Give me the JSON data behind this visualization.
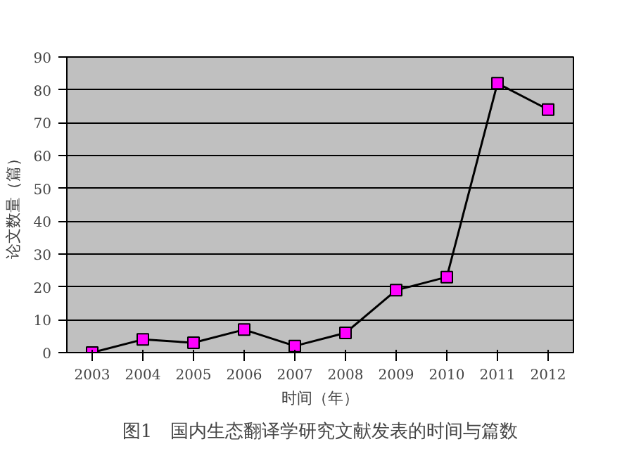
{
  "chart_data": {
    "type": "line",
    "xlabel": "时间（年）",
    "ylabel": "论文数量（篇）",
    "categories": [
      "2003",
      "2004",
      "2005",
      "2006",
      "2007",
      "2008",
      "2009",
      "2010",
      "2011",
      "2012"
    ],
    "series": [
      {
        "color": "#000000",
        "values": [
          0,
          4,
          3,
          7,
          2,
          6,
          19,
          23,
          82,
          74
        ]
      }
    ],
    "ylim": [
      0,
      90
    ],
    "yticks": [
      0,
      10,
      20,
      30,
      40,
      50,
      60,
      70,
      80,
      90
    ],
    "grid": "y",
    "marker": "square",
    "line_style": "solid",
    "annotations": [
      "图1　国内生态翻译学研究文献发表的时间与篇数"
    ]
  }
}
